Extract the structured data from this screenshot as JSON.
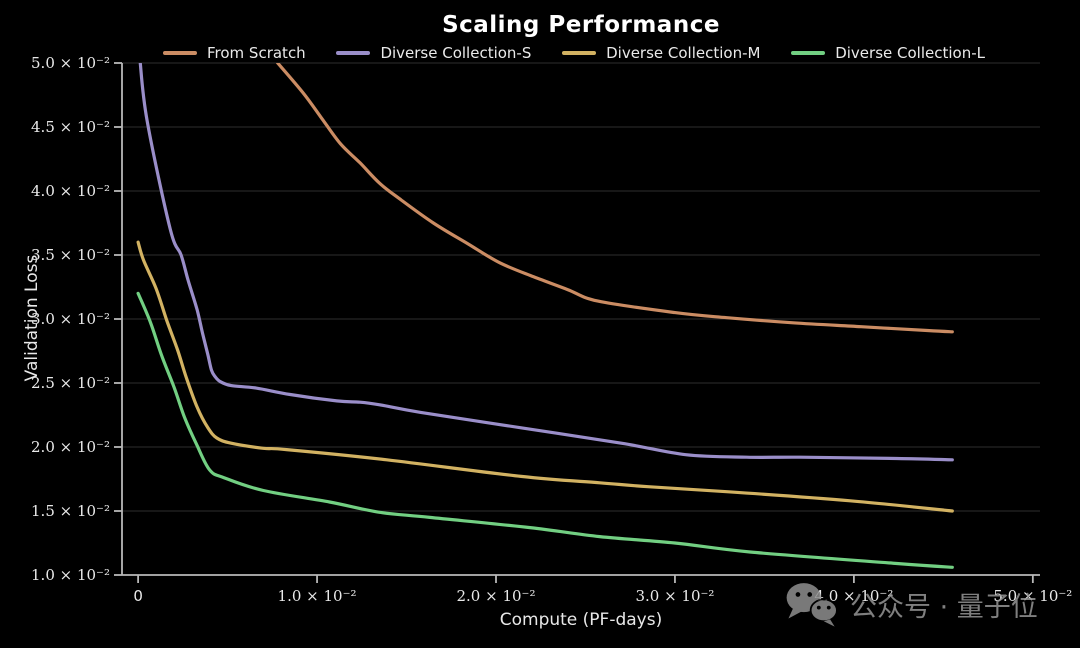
{
  "title": "Scaling Performance",
  "watermark": {
    "text": "公众号 · 量子位",
    "icon": "wechat-icon",
    "color": "#8f8f8f"
  },
  "chart_data": {
    "type": "line",
    "title": "Scaling Performance",
    "xlabel": "Compute (PF-days)",
    "ylabel": "Validation Loss",
    "xlim": [
      -0.0009,
      0.0504
    ],
    "ylim": [
      0.01,
      0.05
    ],
    "grid": "horizontal-only",
    "legend_position": "top",
    "background": "#000000",
    "grid_color": "#2e2e2e",
    "spine_color": "#b8b8b8",
    "tick_label_color": "#e9e9e9",
    "x_ticks": [
      {
        "value": 0.0,
        "label": "0"
      },
      {
        "value": 0.01,
        "label": "1.0 × 10⁻²"
      },
      {
        "value": 0.02,
        "label": "2.0 × 10⁻²"
      },
      {
        "value": 0.03,
        "label": "3.0 × 10⁻²"
      },
      {
        "value": 0.04,
        "label": "4.0 × 10⁻²"
      },
      {
        "value": 0.05,
        "label": "5.0 × 10⁻²"
      }
    ],
    "y_ticks": [
      {
        "value": 0.05,
        "label": "5.0 × 10⁻²"
      },
      {
        "value": 0.045,
        "label": "4.5 × 10⁻²"
      },
      {
        "value": 0.04,
        "label": "4.0 × 10⁻²"
      },
      {
        "value": 0.035,
        "label": "3.5 × 10⁻²"
      },
      {
        "value": 0.03,
        "label": "3.0 × 10⁻²"
      },
      {
        "value": 0.025,
        "label": "2.5 × 10⁻²"
      },
      {
        "value": 0.02,
        "label": "2.0 × 10⁻²"
      },
      {
        "value": 0.015,
        "label": "1.5 × 10⁻²"
      },
      {
        "value": 0.01,
        "label": "1.0 × 10⁻²"
      }
    ],
    "series": [
      {
        "name": "From Scratch",
        "color": "#cb8c63",
        "points": [
          [
            0.0078,
            0.05
          ],
          [
            0.0092,
            0.0477
          ],
          [
            0.0102,
            0.0458
          ],
          [
            0.0113,
            0.0437
          ],
          [
            0.0124,
            0.0422
          ],
          [
            0.0135,
            0.0406
          ],
          [
            0.0147,
            0.0393
          ],
          [
            0.0165,
            0.0375
          ],
          [
            0.0184,
            0.0359
          ],
          [
            0.0202,
            0.0344
          ],
          [
            0.0221,
            0.0333
          ],
          [
            0.024,
            0.0323
          ],
          [
            0.0257,
            0.0314
          ],
          [
            0.03,
            0.0305
          ],
          [
            0.0329,
            0.0301
          ],
          [
            0.0366,
            0.0297
          ],
          [
            0.0404,
            0.0294
          ],
          [
            0.0441,
            0.0291
          ],
          [
            0.0455,
            0.029
          ]
        ]
      },
      {
        "name": "Diverse Collection-S",
        "color": "#9a8ec9",
        "points": [
          [
            0.0001,
            0.0503
          ],
          [
            0.0005,
            0.0455
          ],
          [
            0.0018,
            0.037
          ],
          [
            0.0024,
            0.035
          ],
          [
            0.0028,
            0.033
          ],
          [
            0.0033,
            0.0307
          ],
          [
            0.0036,
            0.0289
          ],
          [
            0.0039,
            0.0272
          ],
          [
            0.0041,
            0.026
          ],
          [
            0.0043,
            0.0255
          ],
          [
            0.0046,
            0.0251
          ],
          [
            0.0052,
            0.0248
          ],
          [
            0.0066,
            0.0246
          ],
          [
            0.0085,
            0.0241
          ],
          [
            0.0111,
            0.0236
          ],
          [
            0.0124,
            0.0235
          ],
          [
            0.0135,
            0.0233
          ],
          [
            0.0158,
            0.0227
          ],
          [
            0.0214,
            0.0215
          ],
          [
            0.027,
            0.0203
          ],
          [
            0.0306,
            0.0194
          ],
          [
            0.034,
            0.0192
          ],
          [
            0.037,
            0.0192
          ],
          [
            0.0424,
            0.0191
          ],
          [
            0.0455,
            0.019
          ]
        ]
      },
      {
        "name": "Diverse Collection-M",
        "color": "#d2b262",
        "points": [
          [
            0.0,
            0.036
          ],
          [
            0.0003,
            0.0346
          ],
          [
            0.001,
            0.0324
          ],
          [
            0.0016,
            0.0299
          ],
          [
            0.0022,
            0.0276
          ],
          [
            0.0027,
            0.0254
          ],
          [
            0.0033,
            0.0231
          ],
          [
            0.0039,
            0.0215
          ],
          [
            0.0044,
            0.0207
          ],
          [
            0.0052,
            0.0203
          ],
          [
            0.007,
            0.0199
          ],
          [
            0.0083,
            0.0198
          ],
          [
            0.0139,
            0.019
          ],
          [
            0.0214,
            0.0177
          ],
          [
            0.0258,
            0.0172
          ],
          [
            0.0285,
            0.0169
          ],
          [
            0.033,
            0.0165
          ],
          [
            0.0398,
            0.0158
          ],
          [
            0.0455,
            0.015
          ]
        ]
      },
      {
        "name": "Diverse Collection-L",
        "color": "#72cf82",
        "points": [
          [
            0.0,
            0.032
          ],
          [
            0.0007,
            0.0297
          ],
          [
            0.0013,
            0.0272
          ],
          [
            0.002,
            0.0247
          ],
          [
            0.0026,
            0.0223
          ],
          [
            0.0033,
            0.0201
          ],
          [
            0.004,
            0.0182
          ],
          [
            0.0048,
            0.0176
          ],
          [
            0.007,
            0.0166
          ],
          [
            0.0107,
            0.0157
          ],
          [
            0.0135,
            0.0149
          ],
          [
            0.0163,
            0.0145
          ],
          [
            0.0219,
            0.0137
          ],
          [
            0.0258,
            0.013
          ],
          [
            0.03,
            0.0125
          ],
          [
            0.0342,
            0.0118
          ],
          [
            0.0424,
            0.0109
          ],
          [
            0.0455,
            0.0106
          ]
        ]
      }
    ]
  }
}
